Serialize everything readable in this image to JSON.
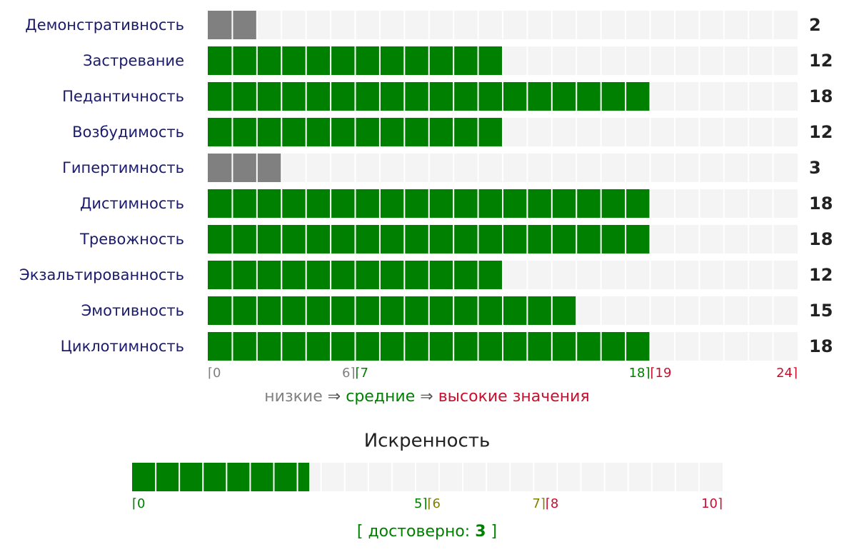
{
  "chart_data": [
    {
      "type": "bar",
      "categories": [
        "Демонстративность",
        "Застревание",
        "Педантичность",
        "Возбудимость",
        "Гипертимность",
        "Дистимность",
        "Тревожность",
        "Экзальтированность",
        "Эмотивность",
        "Циклотимность"
      ],
      "values": [
        2,
        12,
        18,
        12,
        3,
        18,
        18,
        12,
        15,
        18
      ],
      "xlim": [
        0,
        24
      ],
      "segments": 24,
      "track_color": "#f4f4f4",
      "zones": [
        {
          "from": 0,
          "to": 6,
          "color": "#808080",
          "from_label": "⌈0",
          "to_label": "6⌉"
        },
        {
          "from": 6,
          "to": 18,
          "color": "#008000",
          "from_label": "⌈7",
          "to_label": "18⌉"
        },
        {
          "from": 18,
          "to": 24,
          "color": "#c8102e",
          "from_label": "⌈19",
          "to_label": "24⌉"
        }
      ],
      "legend": [
        {
          "text": "низкие",
          "color": "#808080"
        },
        {
          "text": "⇒",
          "color": "#555555"
        },
        {
          "text": "средние",
          "color": "#008000"
        },
        {
          "text": "⇒",
          "color": "#555555"
        },
        {
          "text": "высокие значения",
          "color": "#c8102e"
        }
      ]
    },
    {
      "type": "bar",
      "title": "Искренность",
      "values": [
        3
      ],
      "xlim": [
        0,
        10
      ],
      "segments": 25,
      "track_color": "#f4f4f4",
      "zones": [
        {
          "from": 0,
          "to": 5,
          "color": "#008000",
          "from_label": "⌈0",
          "to_label": "5⌉"
        },
        {
          "from": 5,
          "to": 7,
          "color": "#808000",
          "from_label": "⌈6",
          "to_label": "7⌉"
        },
        {
          "from": 7,
          "to": 10,
          "color": "#c8102e",
          "from_label": "⌈8",
          "to_label": "10⌉"
        }
      ],
      "verdict_prefix": "[ достоверно:",
      "verdict_suffix": "]"
    }
  ]
}
